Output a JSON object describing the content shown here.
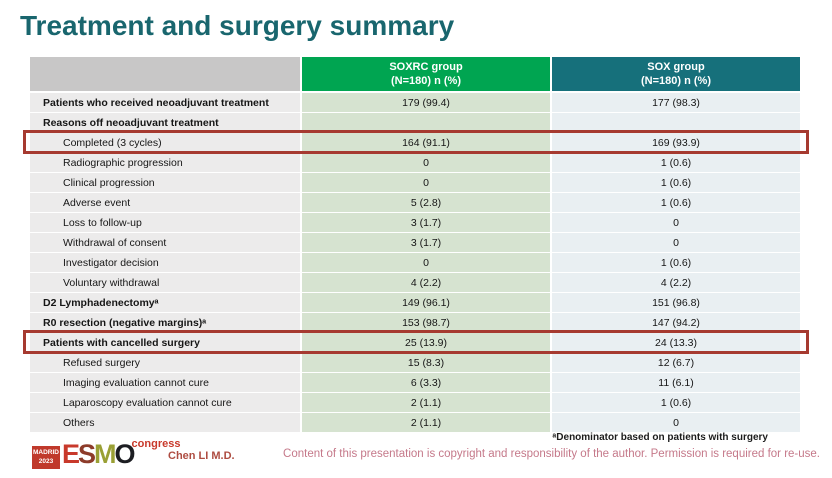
{
  "slide": {
    "title": "Treatment and surgery summary"
  },
  "colors": {
    "title": "#19666e",
    "header_soxrc_green": "#00a551",
    "header_sox_teal": "#16707b",
    "body_soxrc_cell": "#d6e3d0",
    "body_sox_cell": "#e9eff2",
    "label_cell": "#ecebeb",
    "highlight_red": "#a63a30",
    "copyright_pink": "#c5798a",
    "author_red": "#ae4c41"
  },
  "table": {
    "header": {
      "soxrc_line1": "SOXRC group",
      "soxrc_line2": "(N=180)  n (%)",
      "sox_line1": "SOX group",
      "sox_line2": "(N=180)  n (%)"
    },
    "rows": [
      {
        "label": "Patients who received neoadjuvant treatment",
        "soxrc": "179 (99.4)",
        "sox": "177 (98.3)",
        "bold": true,
        "indent": false,
        "highlight": false
      },
      {
        "label": "Reasons off neoadjuvant treatment",
        "soxrc": "",
        "sox": "",
        "bold": true,
        "indent": false,
        "highlight": false
      },
      {
        "label": "Completed (3 cycles)",
        "soxrc": "164 (91.1)",
        "sox": "169 (93.9)",
        "bold": false,
        "indent": true,
        "highlight": true
      },
      {
        "label": "Radiographic progression",
        "soxrc": "0",
        "sox": "1 (0.6)",
        "bold": false,
        "indent": true,
        "highlight": false
      },
      {
        "label": "Clinical progression",
        "soxrc": "0",
        "sox": "1 (0.6)",
        "bold": false,
        "indent": true,
        "highlight": false
      },
      {
        "label": "Adverse event",
        "soxrc": "5 (2.8)",
        "sox": "1 (0.6)",
        "bold": false,
        "indent": true,
        "highlight": false
      },
      {
        "label": "Loss to follow-up",
        "soxrc": "3 (1.7)",
        "sox": "0",
        "bold": false,
        "indent": true,
        "highlight": false
      },
      {
        "label": "Withdrawal of consent",
        "soxrc": "3 (1.7)",
        "sox": "0",
        "bold": false,
        "indent": true,
        "highlight": false
      },
      {
        "label": "Investigator decision",
        "soxrc": "0",
        "sox": "1 (0.6)",
        "bold": false,
        "indent": true,
        "highlight": false
      },
      {
        "label": "Voluntary withdrawal",
        "soxrc": "4 (2.2)",
        "sox": "4 (2.2)",
        "bold": false,
        "indent": true,
        "highlight": false
      },
      {
        "label": "D2 Lymphadenectomyᵃ",
        "soxrc": "149 (96.1)",
        "sox": "151 (96.8)",
        "bold": true,
        "indent": false,
        "highlight": false
      },
      {
        "label": "R0 resection (negative margins)ᵃ",
        "soxrc": "153 (98.7)",
        "sox": "147 (94.2)",
        "bold": true,
        "indent": false,
        "highlight": false
      },
      {
        "label": "Patients with cancelled surgery",
        "soxrc": "25 (13.9)",
        "sox": "24 (13.3)",
        "bold": true,
        "indent": false,
        "highlight": true
      },
      {
        "label": "Refused surgery",
        "soxrc": "15 (8.3)",
        "sox": "12 (6.7)",
        "bold": false,
        "indent": true,
        "highlight": false
      },
      {
        "label": "Imaging evaluation cannot cure",
        "soxrc": "6 (3.3)",
        "sox": "11 (6.1)",
        "bold": false,
        "indent": true,
        "highlight": false
      },
      {
        "label": "Laparoscopy evaluation cannot cure",
        "soxrc": "2 (1.1)",
        "sox": "1 (0.6)",
        "bold": false,
        "indent": true,
        "highlight": false
      },
      {
        "label": "Others",
        "soxrc": "2 (1.1)",
        "sox": "0",
        "bold": false,
        "indent": true,
        "highlight": false
      }
    ]
  },
  "footer": {
    "logo": {
      "city": "MADRID",
      "year": "2023",
      "letters": [
        "E",
        "S",
        "M",
        "O"
      ],
      "congress": "congress"
    },
    "author": "Chen LI M.D.",
    "footnote": "ᵃDenominator based on patients with surgery",
    "copyright": "Content of this presentation is copyright and responsibility of the author. Permission is required for re-use."
  }
}
